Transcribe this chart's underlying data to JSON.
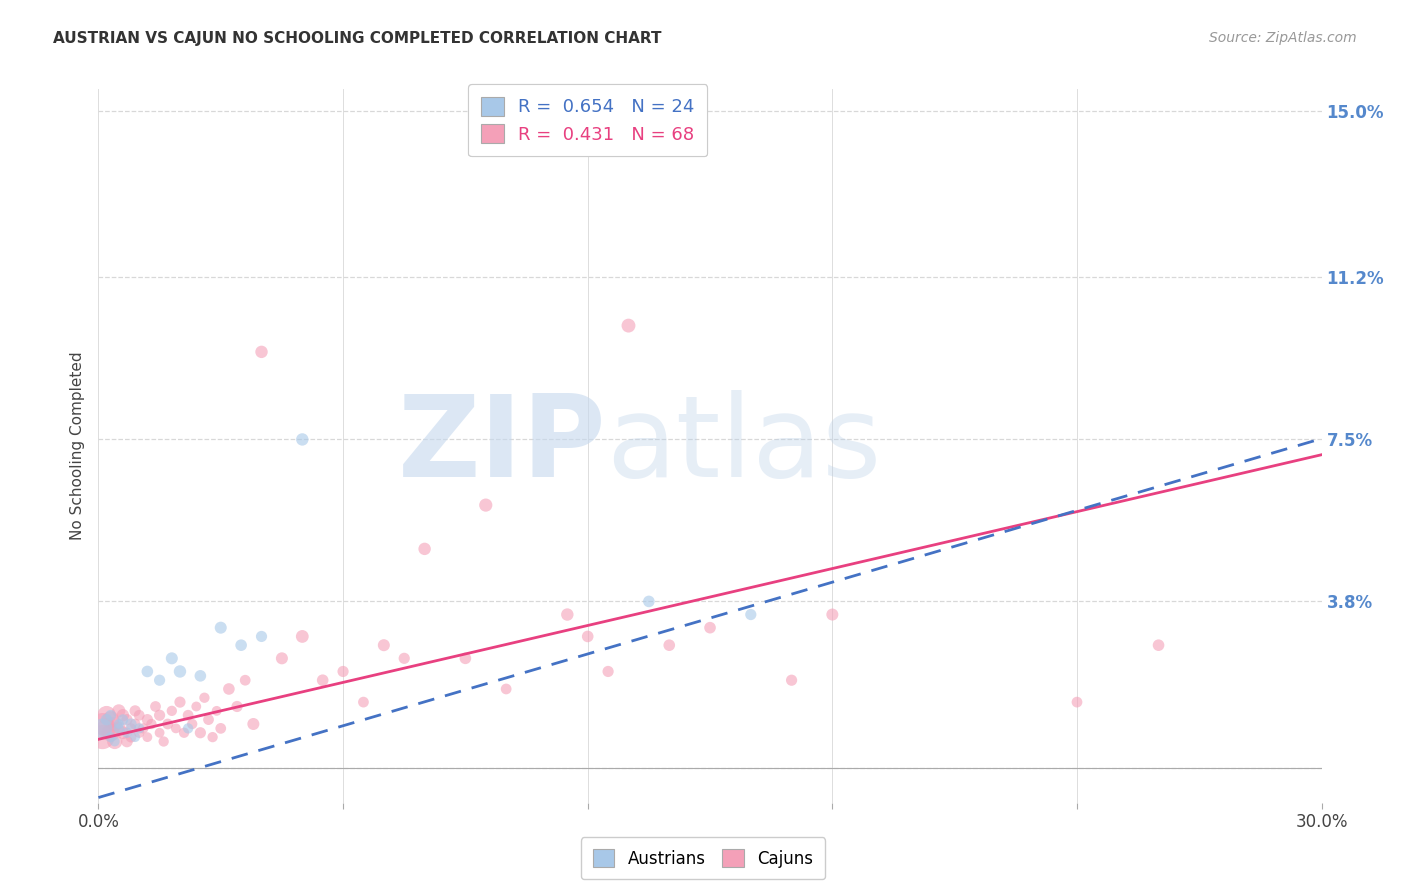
{
  "title": "AUSTRIAN VS CAJUN NO SCHOOLING COMPLETED CORRELATION CHART",
  "source": "Source: ZipAtlas.com",
  "ylabel": "No Schooling Completed",
  "xlim": [
    0.0,
    0.3
  ],
  "ylim": [
    -0.008,
    0.155
  ],
  "plot_ylim": [
    0.0,
    0.15
  ],
  "xticks": [
    0.0,
    0.06,
    0.12,
    0.18,
    0.24,
    0.3
  ],
  "xticklabels": [
    "0.0%",
    "",
    "",
    "",
    "",
    "30.0%"
  ],
  "ytick_positions": [
    0.0,
    0.038,
    0.075,
    0.112,
    0.15
  ],
  "ytick_right_labels": [
    "",
    "3.8%",
    "7.5%",
    "11.2%",
    "15.0%"
  ],
  "grid_color": "#d8d8d8",
  "background_color": "#ffffff",
  "watermark_zip": "ZIP",
  "watermark_atlas": "atlas",
  "legend_R_austrians": "0.654",
  "legend_N_austrians": "24",
  "legend_R_cajuns": "0.431",
  "legend_N_cajuns": "68",
  "austrian_color": "#a8c8e8",
  "cajun_color": "#f4a0b8",
  "austrian_line_color": "#4472c4",
  "cajun_line_color": "#e84080",
  "austrian_line_style": "--",
  "cajun_line_style": "-",
  "austrian_slope": 0.2733,
  "austrian_intercept": -0.0068,
  "cajun_slope": 0.2167,
  "cajun_intercept": 0.0065,
  "austrian_points_x": [
    0.001,
    0.002,
    0.003,
    0.003,
    0.004,
    0.005,
    0.005,
    0.006,
    0.007,
    0.008,
    0.009,
    0.01,
    0.012,
    0.015,
    0.018,
    0.02,
    0.022,
    0.025,
    0.03,
    0.035,
    0.04,
    0.05,
    0.135,
    0.16
  ],
  "austrian_points_y": [
    0.009,
    0.011,
    0.007,
    0.012,
    0.006,
    0.009,
    0.01,
    0.011,
    0.008,
    0.01,
    0.007,
    0.009,
    0.022,
    0.02,
    0.025,
    0.022,
    0.009,
    0.021,
    0.032,
    0.028,
    0.03,
    0.075,
    0.038,
    0.035
  ],
  "austrian_sizes": [
    200,
    70,
    55,
    60,
    50,
    55,
    50,
    60,
    55,
    65,
    50,
    55,
    70,
    65,
    75,
    80,
    55,
    70,
    75,
    70,
    65,
    80,
    70,
    65
  ],
  "cajun_points_x": [
    0.001,
    0.001,
    0.002,
    0.002,
    0.003,
    0.003,
    0.004,
    0.004,
    0.005,
    0.005,
    0.006,
    0.006,
    0.007,
    0.007,
    0.008,
    0.008,
    0.009,
    0.009,
    0.01,
    0.01,
    0.011,
    0.012,
    0.012,
    0.013,
    0.014,
    0.015,
    0.015,
    0.016,
    0.017,
    0.018,
    0.019,
    0.02,
    0.021,
    0.022,
    0.023,
    0.024,
    0.025,
    0.026,
    0.027,
    0.028,
    0.029,
    0.03,
    0.032,
    0.034,
    0.036,
    0.038,
    0.04,
    0.045,
    0.05,
    0.055,
    0.06,
    0.065,
    0.07,
    0.075,
    0.08,
    0.09,
    0.095,
    0.1,
    0.115,
    0.12,
    0.125,
    0.13,
    0.14,
    0.15,
    0.17,
    0.18,
    0.24,
    0.26
  ],
  "cajun_points_y": [
    0.007,
    0.01,
    0.009,
    0.012,
    0.008,
    0.011,
    0.006,
    0.01,
    0.009,
    0.013,
    0.008,
    0.012,
    0.006,
    0.011,
    0.007,
    0.009,
    0.01,
    0.013,
    0.008,
    0.012,
    0.009,
    0.007,
    0.011,
    0.01,
    0.014,
    0.008,
    0.012,
    0.006,
    0.01,
    0.013,
    0.009,
    0.015,
    0.008,
    0.012,
    0.01,
    0.014,
    0.008,
    0.016,
    0.011,
    0.007,
    0.013,
    0.009,
    0.018,
    0.014,
    0.02,
    0.01,
    0.095,
    0.025,
    0.03,
    0.02,
    0.022,
    0.015,
    0.028,
    0.025,
    0.05,
    0.025,
    0.06,
    0.018,
    0.035,
    0.03,
    0.022,
    0.101,
    0.028,
    0.032,
    0.02,
    0.035,
    0.015,
    0.028
  ],
  "cajun_sizes": [
    300,
    250,
    200,
    180,
    160,
    150,
    120,
    110,
    100,
    90,
    85,
    80,
    70,
    65,
    60,
    55,
    60,
    65,
    55,
    60,
    55,
    50,
    65,
    55,
    60,
    50,
    65,
    55,
    60,
    55,
    50,
    65,
    55,
    60,
    55,
    50,
    65,
    55,
    60,
    55,
    50,
    60,
    70,
    65,
    60,
    75,
    80,
    75,
    85,
    70,
    65,
    60,
    75,
    65,
    80,
    70,
    90,
    60,
    80,
    70,
    65,
    100,
    70,
    70,
    65,
    75,
    60,
    70
  ]
}
